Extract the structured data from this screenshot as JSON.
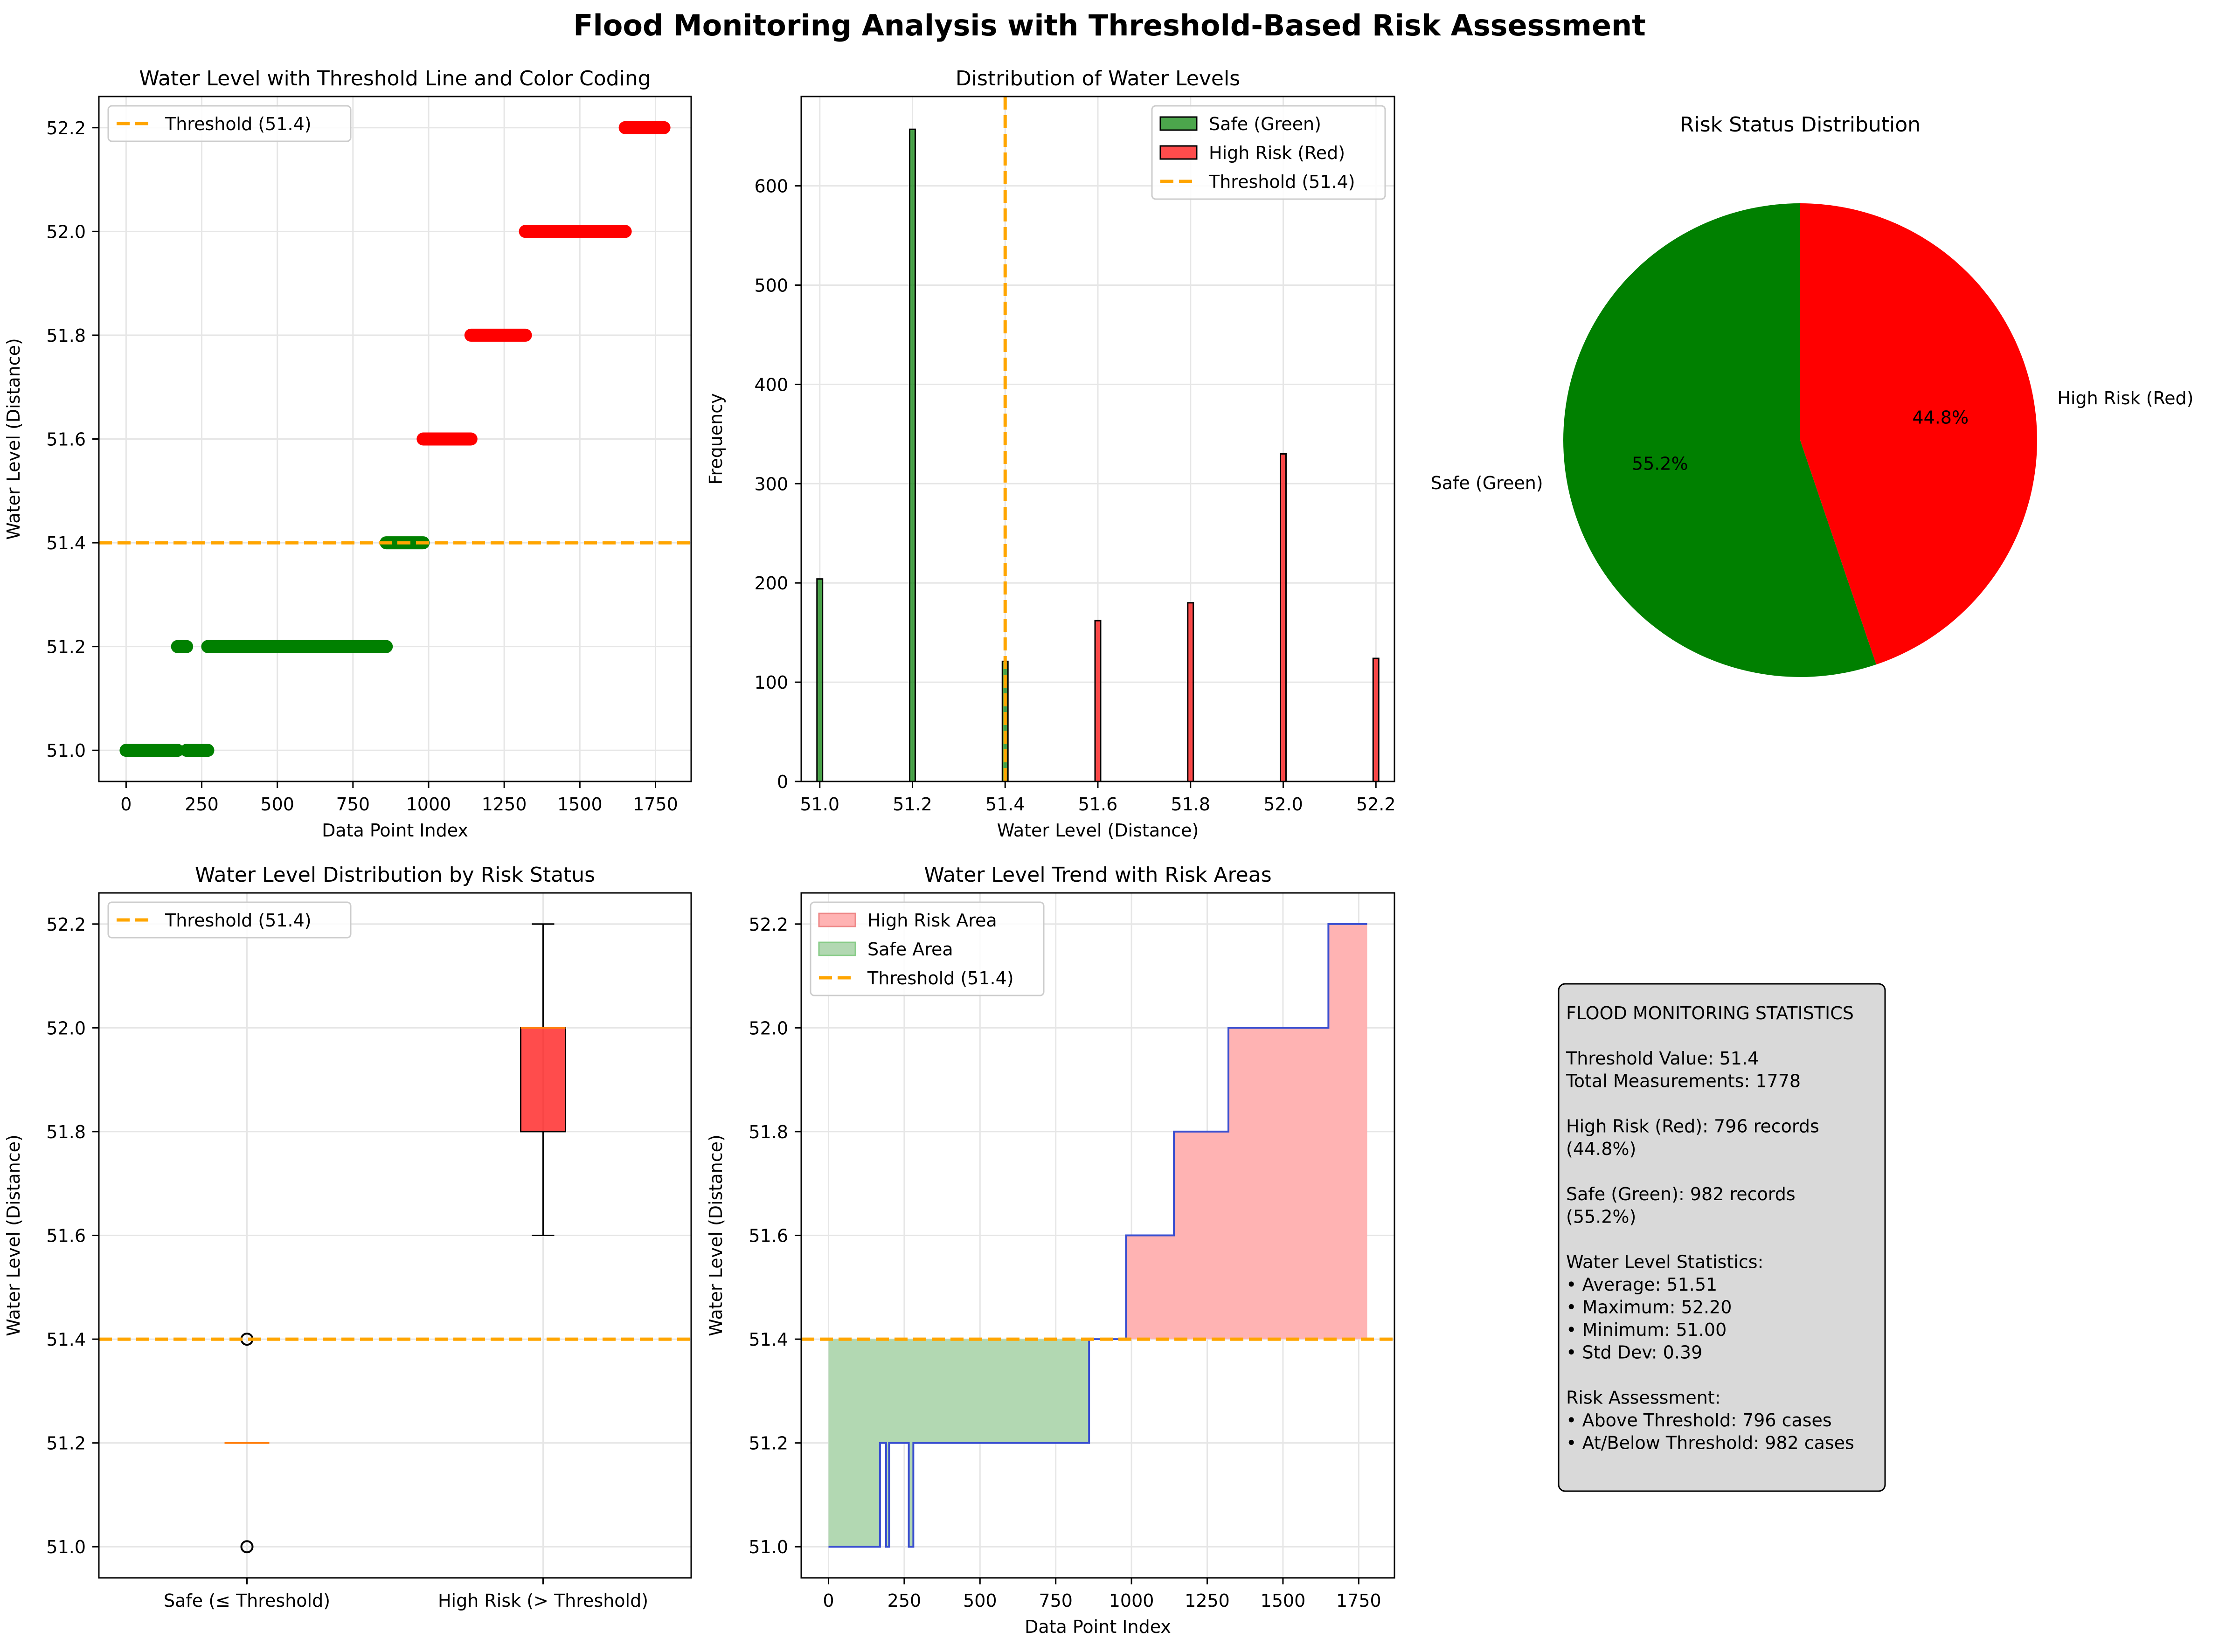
{
  "figure": {
    "title": "Flood Monitoring Analysis with Threshold-Based Risk Assessment"
  },
  "colors": {
    "safe": "#008000",
    "risk": "#ff0000",
    "threshold": "#ffa500",
    "safe_fill": "#b2d8b2",
    "risk_fill": "#ffb3b3",
    "trend_line": "#3a4fd0",
    "grid": "#e6e6e6",
    "stats_box": "#d9d9d9"
  },
  "chart_data": [
    {
      "type": "scatter",
      "title": "Water Level with Threshold Line and Color Coding",
      "xlabel": "Data Point Index",
      "ylabel": "Water Level (Distance)",
      "xlim": [
        -90,
        1868
      ],
      "ylim": [
        50.94,
        52.26
      ],
      "xticks": [
        0,
        250,
        500,
        750,
        1000,
        1250,
        1500,
        1750
      ],
      "yticks": [
        51.0,
        51.2,
        51.4,
        51.6,
        51.8,
        52.0,
        52.2
      ],
      "grid": true,
      "legend": {
        "placement": "top-left",
        "entries": [
          "Threshold (51.4)"
        ]
      },
      "threshold": 51.4,
      "series": [
        {
          "name": "Safe (Green)",
          "segments": [
            {
              "x": [
                0,
                170
              ],
              "y": 51.0
            },
            {
              "x": [
                170,
                200
              ],
              "y": 51.2
            },
            {
              "x": [
                200,
                270
              ],
              "y": 51.0
            },
            {
              "x": [
                270,
                280
              ],
              "y": 51.2
            },
            {
              "x": [
                280,
                860
              ],
              "y": 51.2
            },
            {
              "x": [
                860,
                982
              ],
              "y": 51.4
            }
          ]
        },
        {
          "name": "High Risk (Red)",
          "segments": [
            {
              "x": [
                982,
                1140
              ],
              "y": 51.6
            },
            {
              "x": [
                1140,
                1320
              ],
              "y": 51.8
            },
            {
              "x": [
                1320,
                1650
              ],
              "y": 52.0
            },
            {
              "x": [
                1650,
                1778
              ],
              "y": 52.2
            }
          ]
        }
      ]
    },
    {
      "type": "bar",
      "title": "Distribution of Water Levels",
      "xlabel": "Water Level (Distance)",
      "ylabel": "Frequency",
      "xlim": [
        50.96,
        52.24
      ],
      "ylim": [
        0,
        690
      ],
      "xticks": [
        51.0,
        51.2,
        51.4,
        51.6,
        51.8,
        52.0,
        52.2
      ],
      "yticks": [
        0,
        100,
        200,
        300,
        400,
        500,
        600
      ],
      "grid": true,
      "legend": {
        "placement": "top-right",
        "entries": [
          "Safe (Green)",
          "High Risk (Red)",
          "Threshold (51.4)"
        ]
      },
      "threshold": 51.4,
      "bin_width": 0.012,
      "series": [
        {
          "name": "Safe (Green)",
          "x": [
            51.0,
            51.2,
            51.4
          ],
          "values": [
            204,
            657,
            121
          ]
        },
        {
          "name": "High Risk (Red)",
          "x": [
            51.6,
            51.8,
            52.0,
            52.2
          ],
          "values": [
            162,
            180,
            330,
            124
          ]
        }
      ]
    },
    {
      "type": "pie",
      "title": "Risk Status Distribution",
      "labels": [
        "Safe (Green)",
        "High Risk (Red)"
      ],
      "values": [
        55.2,
        44.8
      ],
      "pct_labels": [
        "55.2%",
        "44.8%"
      ]
    },
    {
      "type": "box",
      "title": "Water Level Distribution by Risk Status",
      "ylabel": "Water Level (Distance)",
      "categories": [
        "Safe (≤ Threshold)",
        "High Risk (> Threshold)"
      ],
      "ylim": [
        50.94,
        52.26
      ],
      "yticks": [
        51.0,
        51.2,
        51.4,
        51.6,
        51.8,
        52.0,
        52.2
      ],
      "grid": true,
      "legend": {
        "placement": "top-left",
        "entries": [
          "Threshold (51.4)"
        ]
      },
      "threshold": 51.4,
      "boxes": [
        {
          "q1": 51.2,
          "median": 51.2,
          "q3": 51.2,
          "whisker_low": 51.2,
          "whisker_high": 51.2,
          "outliers": [
            51.0,
            51.4
          ]
        },
        {
          "q1": 51.8,
          "median": 52.0,
          "q3": 52.0,
          "whisker_low": 51.6,
          "whisker_high": 52.2,
          "outliers": []
        }
      ]
    },
    {
      "type": "area",
      "title": "Water Level Trend with Risk Areas",
      "xlabel": "Data Point Index",
      "ylabel": "Water Level (Distance)",
      "xlim": [
        -90,
        1868
      ],
      "ylim": [
        50.94,
        52.26
      ],
      "xticks": [
        0,
        250,
        500,
        750,
        1000,
        1250,
        1500,
        1750
      ],
      "yticks": [
        51.0,
        51.2,
        51.4,
        51.6,
        51.8,
        52.0,
        52.2
      ],
      "grid": true,
      "legend": {
        "placement": "top-left",
        "entries": [
          "High Risk Area",
          "Safe Area",
          "Threshold (51.4)"
        ]
      },
      "threshold": 51.4,
      "steps": [
        [
          0,
          51.0
        ],
        [
          170,
          51.2
        ],
        [
          190,
          51.0
        ],
        [
          200,
          51.2
        ],
        [
          260,
          51.2
        ],
        [
          265,
          51.0
        ],
        [
          280,
          51.2
        ],
        [
          860,
          51.4
        ],
        [
          982,
          51.6
        ],
        [
          1140,
          51.8
        ],
        [
          1320,
          52.0
        ],
        [
          1650,
          52.2
        ],
        [
          1778,
          52.2
        ]
      ]
    }
  ],
  "stats_box": {
    "lines": [
      "FLOOD MONITORING STATISTICS",
      "",
      "Threshold Value: 51.4",
      "Total Measurements: 1778",
      "",
      "High Risk (Red): 796 records",
      "(44.8%)",
      "",
      "Safe (Green): 982 records",
      "(55.2%)",
      "",
      "Water Level Statistics:",
      "• Average: 51.51",
      "• Maximum: 52.20",
      "• Minimum: 51.00",
      "• Std Dev: 0.39",
      "",
      "Risk Assessment:",
      "• Above Threshold: 796 cases",
      "• At/Below Threshold: 982 cases"
    ]
  }
}
